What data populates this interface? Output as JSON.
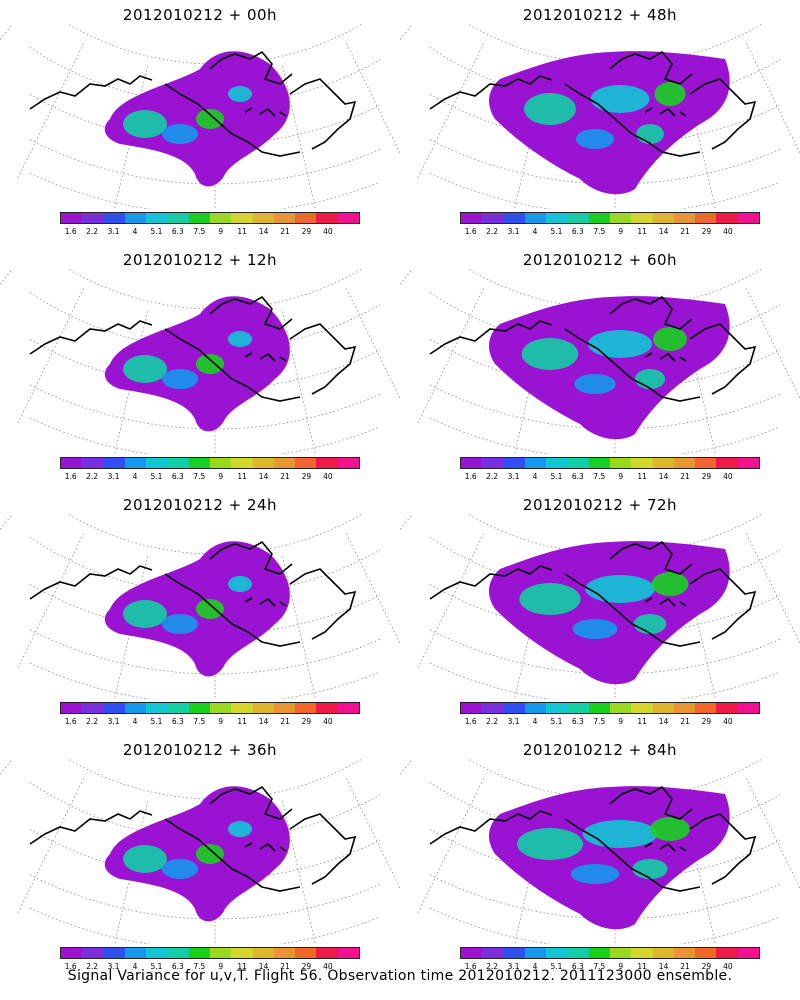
{
  "panels": [
    {
      "title": "2012010212 + 00h"
    },
    {
      "title": "2012010212 + 48h"
    },
    {
      "title": "2012010212 + 12h"
    },
    {
      "title": "2012010212 + 60h"
    },
    {
      "title": "2012010212 + 24h"
    },
    {
      "title": "2012010212 + 72h"
    },
    {
      "title": "2012010212 + 36h"
    },
    {
      "title": "2012010212 + 84h"
    }
  ],
  "legend": {
    "labels": [
      "1.6",
      "2.2",
      "3.1",
      "4",
      "5.1",
      "6.3",
      "7.5",
      "9",
      "11",
      "14",
      "21",
      "29",
      "40"
    ],
    "colors": [
      "#9a12d2",
      "#7a2fdf",
      "#2f4ff0",
      "#1499ee",
      "#12c6d6",
      "#12cfa5",
      "#18d11f",
      "#9ad91e",
      "#d5d629",
      "#dfb52b",
      "#e99530",
      "#f0662b",
      "#f01a4a",
      "#f4108e"
    ]
  },
  "caption": "Signal Variance for u,v,T. Flight 56. Observation time 2012010212. 2011123000 ensemble."
}
